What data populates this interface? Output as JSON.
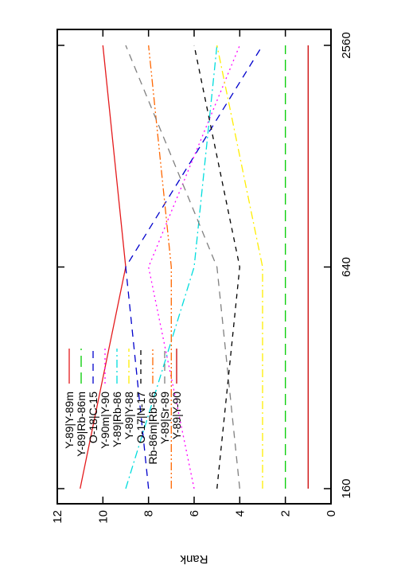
{
  "chart_data": {
    "type": "line",
    "orientation": "rotated 180 degrees",
    "ylabel": "Rank",
    "xlabel": "",
    "x": [
      160,
      640,
      2560
    ],
    "x_tick_labels": [
      "160",
      "640",
      "2560"
    ],
    "ylim": [
      0,
      12
    ],
    "y_ticks": [
      0,
      2,
      4,
      6,
      8,
      10,
      12
    ],
    "y_tick_labels": [
      "0",
      "2",
      "4",
      "6",
      "8",
      "10",
      "12"
    ],
    "grid": false,
    "legend_position": "top-left",
    "series": [
      {
        "name": "Y-89|Y-89m",
        "color": "#e41a1c",
        "dash": "solid",
        "values": [
          11,
          9,
          10
        ]
      },
      {
        "name": "Y-89|Rb-86m",
        "color": "#00cc00",
        "dash": "long-dash",
        "values": [
          2,
          2,
          2
        ]
      },
      {
        "name": "O-18|C-15",
        "color": "#0000cc",
        "dash": "dash",
        "values": [
          8,
          9,
          3
        ]
      },
      {
        "name": "Y-90m|Y-90",
        "color": "#ff00ff",
        "dash": "dot",
        "values": [
          6,
          8,
          4
        ]
      },
      {
        "name": "Y-89|Rb-86",
        "color": "#00dddd",
        "dash": "dash-dot",
        "values": [
          9,
          6,
          5
        ]
      },
      {
        "name": "Y-89|Y-88",
        "color": "#ffee00",
        "dash": "dash-dot",
        "values": [
          3,
          3,
          5
        ]
      },
      {
        "name": "O-17|N-17",
        "color": "#000000",
        "dash": "short-dash",
        "values": [
          5,
          4,
          6
        ]
      },
      {
        "name": "Rb-86m|Rb-86",
        "color": "#ff6600",
        "dash": "dash-dot-dot",
        "values": [
          7,
          7,
          8
        ]
      },
      {
        "name": "Y-89|Sr-89",
        "color": "#808080",
        "dash": "dash",
        "values": [
          4,
          5,
          9
        ]
      },
      {
        "name": "Y-89|Y-90",
        "color": "#cc0000",
        "dash": "solid",
        "values": [
          1,
          1,
          1
        ]
      }
    ]
  }
}
